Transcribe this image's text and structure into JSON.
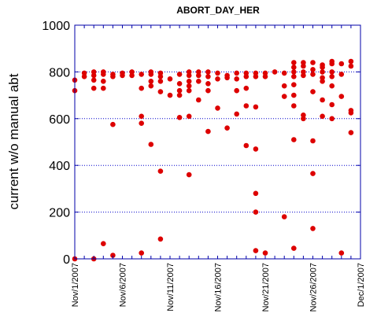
{
  "chart_data": {
    "type": "scatter",
    "title": "ABORT_DAY_HER",
    "xlabel": "",
    "ylabel": "current w/o manual abt",
    "xlim": [
      "2007-11-01",
      "2007-12-01"
    ],
    "ylim": [
      0,
      1000
    ],
    "yticks": [
      0,
      200,
      400,
      600,
      800,
      1000
    ],
    "xticks": [
      "Nov/1/2007",
      "Nov/6/2007",
      "Nov/11/2007",
      "Nov/16/2007",
      "Nov/21/2007",
      "Nov/26/2007",
      "Dec/1/2007"
    ],
    "grid": "horizontal dotted at 200, 400, 600, 800",
    "marker_color": "#dd0000",
    "grid_color": "#0000cc",
    "axis_color": "#0000aa",
    "series": [
      {
        "points": [
          [
            "2007-11-01 00:00",
            0
          ],
          [
            "2007-11-01 00:00",
            720
          ],
          [
            "2007-11-01 00:00",
            765
          ],
          [
            "2007-11-02 00:00",
            780
          ],
          [
            "2007-11-02 00:00",
            795
          ],
          [
            "2007-11-03 00:00",
            0
          ],
          [
            "2007-11-03 00:00",
            730
          ],
          [
            "2007-11-03 00:00",
            765
          ],
          [
            "2007-11-03 00:00",
            785
          ],
          [
            "2007-11-03 00:00",
            800
          ],
          [
            "2007-11-04 00:00",
            65
          ],
          [
            "2007-11-04 00:00",
            730
          ],
          [
            "2007-11-04 00:00",
            760
          ],
          [
            "2007-11-04 00:00",
            790
          ],
          [
            "2007-11-04 00:00",
            800
          ],
          [
            "2007-11-05 00:00",
            15
          ],
          [
            "2007-11-05 00:00",
            575
          ],
          [
            "2007-11-05 00:00",
            780
          ],
          [
            "2007-11-05 00:00",
            790
          ],
          [
            "2007-11-06 00:00",
            785
          ],
          [
            "2007-11-06 00:00",
            795
          ],
          [
            "2007-11-07 00:00",
            785
          ],
          [
            "2007-11-07 00:00",
            800
          ],
          [
            "2007-11-08 00:00",
            25
          ],
          [
            "2007-11-08 00:00",
            580
          ],
          [
            "2007-11-08 00:00",
            610
          ],
          [
            "2007-11-08 00:00",
            730
          ],
          [
            "2007-11-08 00:00",
            790
          ],
          [
            "2007-11-09 00:00",
            490
          ],
          [
            "2007-11-09 00:00",
            740
          ],
          [
            "2007-11-09 00:00",
            760
          ],
          [
            "2007-11-09 00:00",
            790
          ],
          [
            "2007-11-09 00:00",
            800
          ],
          [
            "2007-11-10 00:00",
            85
          ],
          [
            "2007-11-10 00:00",
            375
          ],
          [
            "2007-11-10 00:00",
            715
          ],
          [
            "2007-11-10 00:00",
            760
          ],
          [
            "2007-11-10 00:00",
            780
          ],
          [
            "2007-11-10 00:00",
            795
          ],
          [
            "2007-11-11 00:00",
            700
          ],
          [
            "2007-11-11 00:00",
            770
          ],
          [
            "2007-11-12 00:00",
            605
          ],
          [
            "2007-11-12 00:00",
            700
          ],
          [
            "2007-11-12 00:00",
            720
          ],
          [
            "2007-11-12 00:00",
            750
          ],
          [
            "2007-11-12 00:00",
            790
          ],
          [
            "2007-11-13 00:00",
            360
          ],
          [
            "2007-11-13 00:00",
            610
          ],
          [
            "2007-11-13 00:00",
            720
          ],
          [
            "2007-11-13 00:00",
            740
          ],
          [
            "2007-11-13 00:00",
            760
          ],
          [
            "2007-11-13 00:00",
            785
          ],
          [
            "2007-11-13 00:00",
            800
          ],
          [
            "2007-11-14 00:00",
            680
          ],
          [
            "2007-11-14 00:00",
            760
          ],
          [
            "2007-11-14 00:00",
            785
          ],
          [
            "2007-11-14 00:00",
            800
          ],
          [
            "2007-11-15 00:00",
            545
          ],
          [
            "2007-11-15 00:00",
            720
          ],
          [
            "2007-11-15 00:00",
            750
          ],
          [
            "2007-11-15 00:00",
            780
          ],
          [
            "2007-11-15 00:00",
            800
          ],
          [
            "2007-11-16 00:00",
            645
          ],
          [
            "2007-11-16 00:00",
            770
          ],
          [
            "2007-11-16 00:00",
            795
          ],
          [
            "2007-11-17 00:00",
            560
          ],
          [
            "2007-11-17 00:00",
            775
          ],
          [
            "2007-11-17 00:00",
            785
          ],
          [
            "2007-11-18 00:00",
            620
          ],
          [
            "2007-11-18 00:00",
            720
          ],
          [
            "2007-11-18 00:00",
            770
          ],
          [
            "2007-11-18 00:00",
            795
          ],
          [
            "2007-11-19 00:00",
            485
          ],
          [
            "2007-11-19 00:00",
            655
          ],
          [
            "2007-11-19 00:00",
            730
          ],
          [
            "2007-11-19 00:00",
            780
          ],
          [
            "2007-11-19 00:00",
            795
          ],
          [
            "2007-11-20 00:00",
            35
          ],
          [
            "2007-11-20 00:00",
            200
          ],
          [
            "2007-11-20 00:00",
            280
          ],
          [
            "2007-11-20 00:00",
            470
          ],
          [
            "2007-11-20 00:00",
            650
          ],
          [
            "2007-11-20 00:00",
            780
          ],
          [
            "2007-11-20 00:00",
            795
          ],
          [
            "2007-11-21 00:00",
            25
          ],
          [
            "2007-11-21 00:00",
            780
          ],
          [
            "2007-11-21 00:00",
            795
          ],
          [
            "2007-11-22 00:00",
            800
          ],
          [
            "2007-11-23 00:00",
            180
          ],
          [
            "2007-11-23 00:00",
            695
          ],
          [
            "2007-11-23 00:00",
            740
          ],
          [
            "2007-11-23 00:00",
            795
          ],
          [
            "2007-11-24 00:00",
            45
          ],
          [
            "2007-11-24 00:00",
            510
          ],
          [
            "2007-11-24 00:00",
            655
          ],
          [
            "2007-11-24 00:00",
            700
          ],
          [
            "2007-11-24 00:00",
            745
          ],
          [
            "2007-11-24 00:00",
            780
          ],
          [
            "2007-11-24 00:00",
            800
          ],
          [
            "2007-11-24 00:00",
            820
          ],
          [
            "2007-11-24 00:00",
            840
          ],
          [
            "2007-11-25 00:00",
            600
          ],
          [
            "2007-11-25 00:00",
            615
          ],
          [
            "2007-11-25 00:00",
            785
          ],
          [
            "2007-11-25 00:00",
            800
          ],
          [
            "2007-11-25 00:00",
            825
          ],
          [
            "2007-11-25 00:00",
            840
          ],
          [
            "2007-11-26 00:00",
            130
          ],
          [
            "2007-11-26 00:00",
            365
          ],
          [
            "2007-11-26 00:00",
            505
          ],
          [
            "2007-11-26 00:00",
            715
          ],
          [
            "2007-11-26 00:00",
            790
          ],
          [
            "2007-11-26 00:00",
            810
          ],
          [
            "2007-11-26 00:00",
            840
          ],
          [
            "2007-11-27 00:00",
            610
          ],
          [
            "2007-11-27 00:00",
            680
          ],
          [
            "2007-11-27 00:00",
            760
          ],
          [
            "2007-11-27 00:00",
            775
          ],
          [
            "2007-11-27 00:00",
            800
          ],
          [
            "2007-11-27 00:00",
            820
          ],
          [
            "2007-11-27 00:00",
            830
          ],
          [
            "2007-11-28 00:00",
            600
          ],
          [
            "2007-11-28 00:00",
            660
          ],
          [
            "2007-11-28 00:00",
            740
          ],
          [
            "2007-11-28 00:00",
            780
          ],
          [
            "2007-11-28 00:00",
            800
          ],
          [
            "2007-11-28 00:00",
            835
          ],
          [
            "2007-11-28 00:00",
            845
          ],
          [
            "2007-11-29 00:00",
            25
          ],
          [
            "2007-11-29 00:00",
            695
          ],
          [
            "2007-11-29 00:00",
            790
          ],
          [
            "2007-11-29 00:00",
            835
          ],
          [
            "2007-11-30 00:00",
            540
          ],
          [
            "2007-11-30 00:00",
            625
          ],
          [
            "2007-11-30 00:00",
            635
          ],
          [
            "2007-11-30 00:00",
            825
          ],
          [
            "2007-11-30 00:00",
            845
          ]
        ]
      }
    ]
  }
}
